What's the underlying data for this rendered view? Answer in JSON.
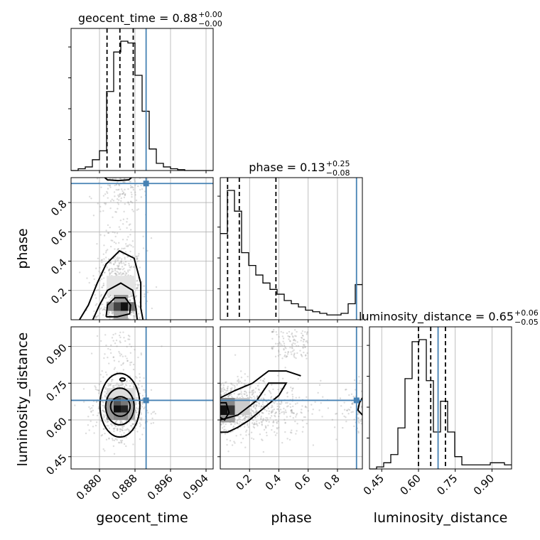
{
  "chart_data": {
    "type": "corner",
    "parameters": [
      "geocent_time",
      "phase",
      "luminosity_distance"
    ],
    "truths": {
      "geocent_time": 0.8905,
      "phase": 0.93,
      "luminosity_distance": 0.68
    },
    "titles": {
      "geocent_time": {
        "name": "geocent_time",
        "median": "0.88",
        "plus": "+0.00",
        "minus": "−0.00"
      },
      "phase": {
        "name": "phase",
        "median": "0.13",
        "plus": "+0.25",
        "minus": "−0.08"
      },
      "luminosity_distance": {
        "name": "luminosity_distance",
        "median": "0.65",
        "plus": "+0.06",
        "minus": "−0.05"
      }
    },
    "ranges": {
      "geocent_time": [
        0.8736,
        0.9056
      ],
      "phase": [
        0.0,
        0.97
      ],
      "luminosity_distance": [
        0.4,
        0.98
      ]
    },
    "ticks": {
      "geocent_time": [
        "0.880",
        "0.888",
        "0.896",
        "0.904"
      ],
      "phase": [
        "0.2",
        "0.4",
        "0.6",
        "0.8"
      ],
      "luminosity_distance": [
        "0.45",
        "0.60",
        "0.75",
        "0.90"
      ]
    },
    "quantiles": {
      "geocent_time": [
        0.8817,
        0.8846,
        0.8876
      ],
      "phase": [
        0.05,
        0.13,
        0.38
      ],
      "luminosity_distance": [
        0.6,
        0.65,
        0.71
      ]
    },
    "histograms": {
      "geocent_time": {
        "edges": [
          0.8736,
          0.8752,
          0.8768,
          0.8784,
          0.88,
          0.8816,
          0.8832,
          0.8848,
          0.8864,
          0.888,
          0.8896,
          0.8912,
          0.8928,
          0.8944,
          0.896,
          0.8976,
          0.8992,
          0.9008,
          0.9024,
          0.904,
          0.9056
        ],
        "counts": [
          0,
          1,
          2,
          6,
          11,
          44,
          66,
          72,
          71,
          53,
          33,
          12,
          4,
          2,
          1,
          0.5,
          0,
          0,
          0,
          0
        ]
      },
      "phase": {
        "edges": [
          0.0,
          0.0485,
          0.097,
          0.1455,
          0.194,
          0.2425,
          0.291,
          0.3395,
          0.388,
          0.4365,
          0.485,
          0.5335,
          0.582,
          0.6305,
          0.679,
          0.7275,
          0.776,
          0.8245,
          0.873,
          0.9215,
          0.97
        ],
        "counts": [
          54,
          81,
          68,
          42,
          34,
          28,
          23,
          19,
          16,
          12,
          10,
          8,
          6,
          5,
          4,
          3,
          3,
          4,
          10,
          22
        ]
      },
      "luminosity_distance": {
        "edges": [
          0.4,
          0.429,
          0.458,
          0.487,
          0.516,
          0.545,
          0.574,
          0.603,
          0.632,
          0.661,
          0.69,
          0.719,
          0.748,
          0.777,
          0.806,
          0.835,
          0.864,
          0.893,
          0.922,
          0.951,
          0.98
        ],
        "counts": [
          0,
          1,
          3,
          7,
          20,
          44,
          62,
          63,
          43,
          18,
          33,
          18,
          6,
          2,
          2,
          2,
          2,
          3,
          3,
          2
        ]
      }
    },
    "ylabels": {
      "phase": "phase",
      "luminosity_distance": "luminosity_distance"
    },
    "xlabels": {
      "geocent_time": "geocent_time",
      "phase": "phase",
      "luminosity_distance": "luminosity_distance"
    }
  }
}
